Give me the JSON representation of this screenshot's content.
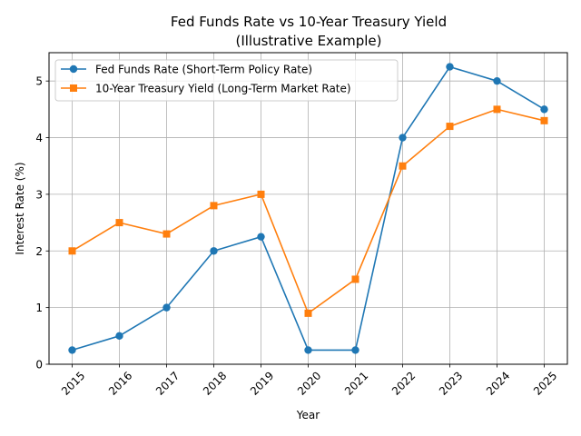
{
  "chart_data": {
    "type": "line",
    "title": "Fed Funds Rate vs 10-Year Treasury Yield",
    "subtitle": "(Illustrative Example)",
    "xlabel": "Year",
    "ylabel": "Interest Rate (%)",
    "categories": [
      "2015",
      "2016",
      "2017",
      "2018",
      "2019",
      "2020",
      "2021",
      "2022",
      "2023",
      "2024",
      "2025"
    ],
    "ylim": [
      0,
      5.5
    ],
    "yticks": [
      0,
      1,
      2,
      3,
      4,
      5
    ],
    "grid": true,
    "legend_position": "top-left",
    "series": [
      {
        "name": "Fed Funds Rate (Short-Term Policy Rate)",
        "marker": "circle",
        "color": "#1f77b4",
        "values": [
          0.25,
          0.5,
          1.0,
          2.0,
          2.25,
          0.25,
          0.25,
          4.0,
          5.25,
          5.0,
          4.5
        ]
      },
      {
        "name": "10-Year Treasury Yield (Long-Term Market Rate)",
        "marker": "square",
        "color": "#ff7f0e",
        "values": [
          2.0,
          2.5,
          2.3,
          2.8,
          3.0,
          0.9,
          1.5,
          3.5,
          4.2,
          4.5,
          4.3
        ]
      }
    ]
  }
}
